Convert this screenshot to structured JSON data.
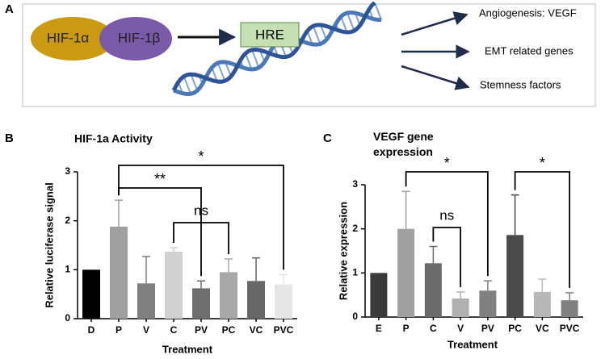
{
  "panel_labels": [
    "A",
    "B",
    "C"
  ],
  "diagram": {
    "nodes": [
      "HIF-1α",
      "HIF-1β",
      "HRE"
    ],
    "targets": [
      "Angiogenesis: VEGF",
      "EMT related genes",
      "Stemness factors"
    ]
  },
  "chart_data": [
    {
      "type": "bar",
      "title": "HIF-1a Activity",
      "ylabel": "Relative luciferase signal",
      "xlabel": "Treatment",
      "categories": [
        "D",
        "P",
        "V",
        "C",
        "PV",
        "PC",
        "VC",
        "PVC"
      ],
      "values": [
        1.0,
        1.88,
        0.72,
        1.37,
        0.62,
        0.95,
        0.77,
        0.7
      ],
      "errors": [
        null,
        0.54,
        0.55,
        0.08,
        0.15,
        0.27,
        0.47,
        0.2
      ],
      "colors": [
        "#000000",
        "#a0a0a0",
        "#7f7f7f",
        "#d0d0d0",
        "#6e6e6e",
        "#a8a8a8",
        "#676767",
        "#e6e6e6"
      ],
      "ylim": [
        0,
        3
      ],
      "yticks": [
        0,
        1,
        2,
        3
      ],
      "annotations": [
        {
          "text": "*",
          "between": [
            "P",
            "PVC"
          ]
        },
        {
          "text": "**",
          "between": [
            "P",
            "PV"
          ]
        },
        {
          "text": "ns",
          "between": [
            "C",
            "PC"
          ]
        }
      ]
    },
    {
      "type": "bar",
      "title": "VEGF gene expression",
      "ylabel": "Relative expression",
      "xlabel": "Treatment",
      "categories": [
        "E",
        "P",
        "C",
        "V",
        "PV",
        "PC",
        "VC",
        "PVC"
      ],
      "values": [
        1.0,
        2.0,
        1.22,
        0.42,
        0.6,
        1.86,
        0.57,
        0.38
      ],
      "errors": [
        null,
        0.85,
        0.38,
        0.15,
        0.22,
        0.91,
        0.29,
        0.17
      ],
      "colors": [
        "#3a3a3a",
        "#a0a0a0",
        "#6a6a6a",
        "#b0b0b0",
        "#808080",
        "#4a4a4a",
        "#b8b8b8",
        "#808080"
      ],
      "ylim": [
        0,
        3
      ],
      "yticks": [
        0,
        1,
        2,
        3
      ],
      "annotations": [
        {
          "text": "*",
          "between": [
            "P",
            "PV"
          ]
        },
        {
          "text": "ns",
          "between": [
            "C",
            "V"
          ]
        },
        {
          "text": "*",
          "between": [
            "PC",
            "PVC"
          ]
        }
      ]
    }
  ]
}
